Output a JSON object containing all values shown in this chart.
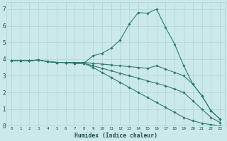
{
  "xlabel": "Humidex (Indice chaleur)",
  "background_color": "#cce9ea",
  "line_color": "#2e7d6e",
  "grid_color": "#aed4d6",
  "xlim": [
    -0.5,
    23.5
  ],
  "ylim": [
    0,
    7.4
  ],
  "xticks": [
    0,
    1,
    2,
    3,
    4,
    5,
    6,
    7,
    8,
    9,
    10,
    11,
    12,
    13,
    14,
    15,
    16,
    17,
    18,
    19,
    20,
    21,
    22,
    23
  ],
  "yticks": [
    0,
    1,
    2,
    3,
    4,
    5,
    6,
    7
  ],
  "lines": [
    {
      "x": [
        0,
        1,
        2,
        3,
        4,
        5,
        6,
        7,
        8,
        9,
        10,
        11,
        12,
        13,
        14,
        15,
        16,
        17,
        18,
        19,
        20,
        21,
        22,
        23
      ],
      "y": [
        3.9,
        3.9,
        3.9,
        3.95,
        3.85,
        3.8,
        3.8,
        3.75,
        3.75,
        4.2,
        4.35,
        4.65,
        5.15,
        6.1,
        6.8,
        6.75,
        7.0,
        5.9,
        4.9,
        3.6,
        2.5,
        1.8,
        0.9,
        0.4
      ]
    },
    {
      "x": [
        0,
        1,
        2,
        3,
        4,
        5,
        6,
        7,
        8,
        9,
        10,
        11,
        12,
        13,
        14,
        15,
        16,
        17,
        18,
        19,
        20,
        21,
        22,
        23
      ],
      "y": [
        3.9,
        3.9,
        3.9,
        3.95,
        3.85,
        3.8,
        3.8,
        3.8,
        3.8,
        3.75,
        3.7,
        3.65,
        3.6,
        3.55,
        3.5,
        3.45,
        3.6,
        3.4,
        3.2,
        3.0,
        2.5,
        1.8,
        0.9,
        0.4
      ]
    },
    {
      "x": [
        0,
        1,
        2,
        3,
        4,
        5,
        6,
        7,
        8,
        9,
        10,
        11,
        12,
        13,
        14,
        15,
        16,
        17,
        18,
        19,
        20,
        21,
        22,
        23
      ],
      "y": [
        3.9,
        3.9,
        3.9,
        3.95,
        3.85,
        3.8,
        3.8,
        3.75,
        3.75,
        3.6,
        3.45,
        3.3,
        3.15,
        3.0,
        2.85,
        2.7,
        2.55,
        2.4,
        2.2,
        2.0,
        1.5,
        1.0,
        0.5,
        0.2
      ]
    },
    {
      "x": [
        0,
        1,
        2,
        3,
        4,
        5,
        6,
        7,
        8,
        9,
        10,
        11,
        12,
        13,
        14,
        15,
        16,
        17,
        18,
        19,
        20,
        21,
        22,
        23
      ],
      "y": [
        3.9,
        3.9,
        3.9,
        3.95,
        3.85,
        3.8,
        3.8,
        3.75,
        3.75,
        3.5,
        3.2,
        2.9,
        2.6,
        2.3,
        2.0,
        1.7,
        1.4,
        1.1,
        0.8,
        0.5,
        0.3,
        0.15,
        0.07,
        0.0
      ]
    }
  ]
}
